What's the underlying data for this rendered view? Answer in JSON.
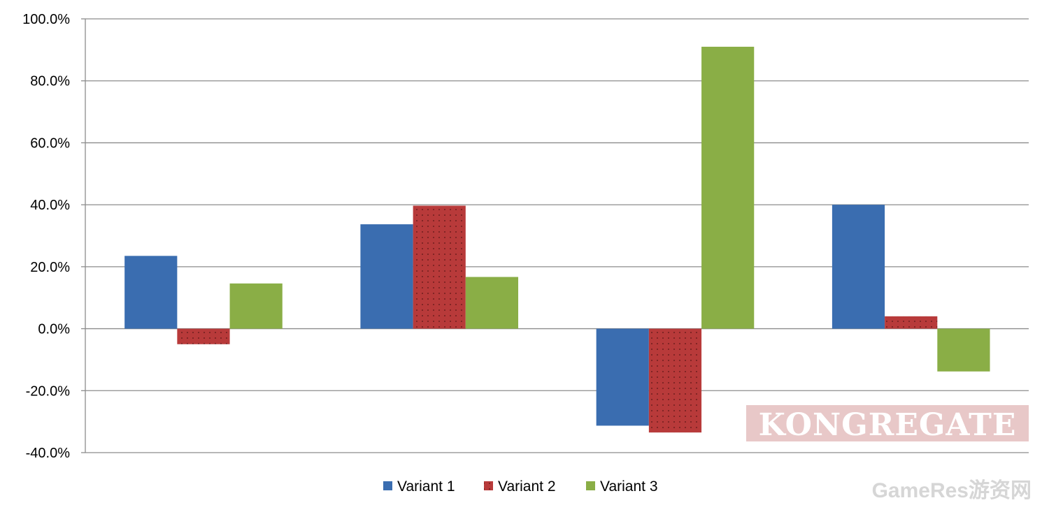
{
  "chart_data": {
    "type": "bar",
    "categories": [
      "",
      "",
      "",
      ""
    ],
    "series": [
      {
        "name": "Variant 1",
        "values": [
          23.5,
          33.7,
          -31.3,
          40.0
        ],
        "color": "#3a6db0",
        "pattern": "solid"
      },
      {
        "name": "Variant 2",
        "values": [
          -5.0,
          39.7,
          -33.5,
          4.0
        ],
        "color": "#b83a3a",
        "pattern": "dotted"
      },
      {
        "name": "Variant 3",
        "values": [
          14.6,
          16.7,
          91.0,
          -13.8
        ],
        "color": "#8aae46",
        "pattern": "solid"
      }
    ],
    "ylim": [
      -40,
      100
    ],
    "yticks": [
      100,
      80,
      60,
      40,
      20,
      0,
      -20,
      -40
    ],
    "ytick_labels": [
      "100.0%",
      "80.0%",
      "60.0%",
      "40.0%",
      "20.0%",
      "0.0%",
      "-20.0%",
      "-40.0%"
    ],
    "grid": true,
    "legend_position": "bottom"
  },
  "watermarks": {
    "kongregate": "KONGREGATE",
    "kongregate_bg_color": "#e8c8c8",
    "gameres": "GameRes游资网"
  }
}
